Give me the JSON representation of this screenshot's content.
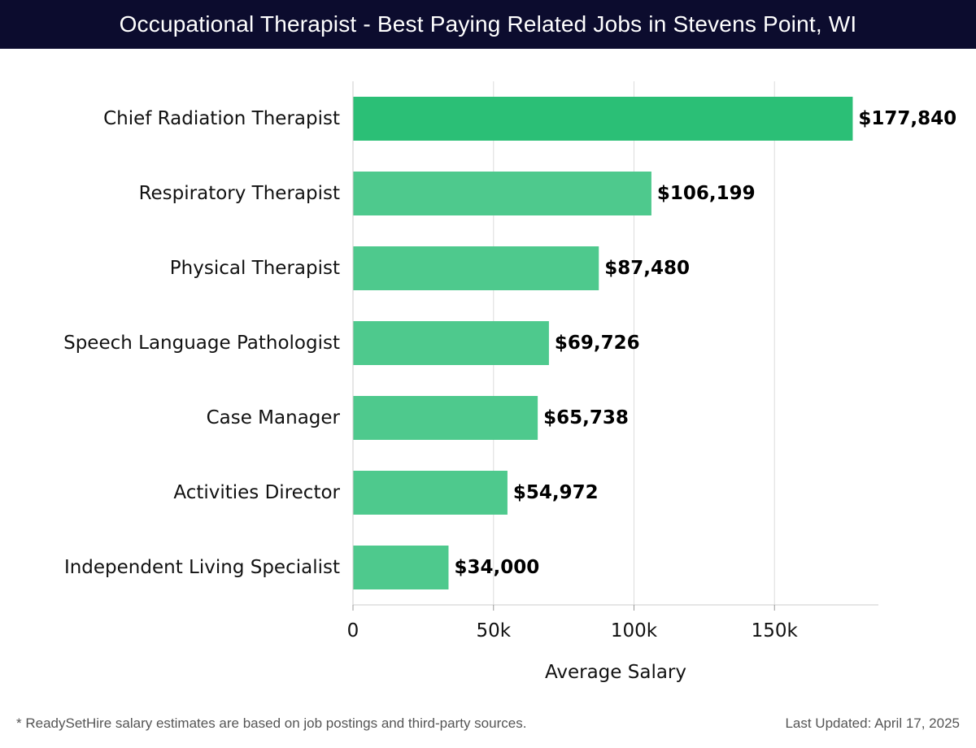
{
  "header": {
    "title": "Occupational Therapist - Best Paying Related Jobs in Stevens Point, WI"
  },
  "footer": {
    "note": "* ReadySetHire salary estimates are based on job postings and third-party sources.",
    "last_updated": "Last Updated: April 17, 2025"
  },
  "colors": {
    "top_bar": "#2bbf76",
    "bar": "#4ec98d",
    "grid": "#dddddd",
    "title_bg": "#0c0c2e"
  },
  "chart_data": {
    "type": "bar",
    "orientation": "horizontal",
    "categories": [
      "Chief Radiation Therapist",
      "Respiratory Therapist",
      "Physical Therapist",
      "Speech Language Pathologist",
      "Case Manager",
      "Activities Director",
      "Independent Living Specialist"
    ],
    "values": [
      177840,
      106199,
      87480,
      69726,
      65738,
      54972,
      34000
    ],
    "value_labels": [
      "$177,840",
      "$106,199",
      "$87,480",
      "$69,726",
      "$65,738",
      "$54,972",
      "$34,000"
    ],
    "xlabel": "Average Salary",
    "xlim": [
      0,
      187000
    ],
    "xticks": [
      0,
      50000,
      100000,
      150000
    ],
    "xtick_labels": [
      "0",
      "50k",
      "100k",
      "150k"
    ],
    "grid": true
  }
}
